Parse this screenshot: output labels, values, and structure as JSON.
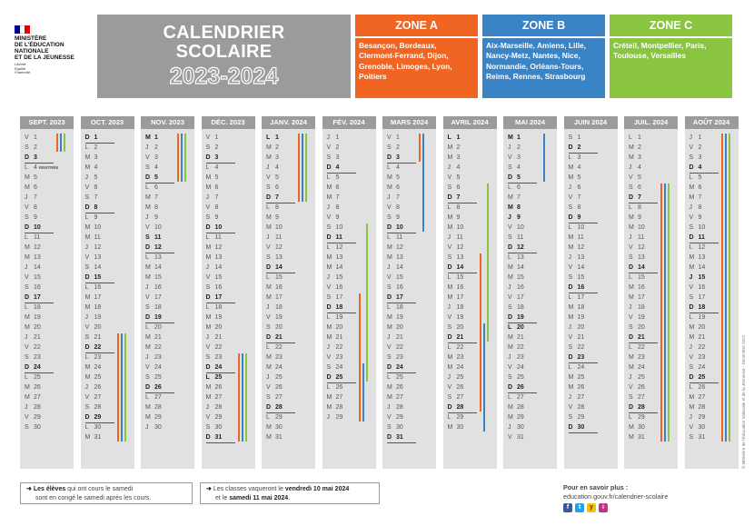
{
  "logo": {
    "lines": [
      "MINISTÈRE",
      "DE L'ÉDUCATION",
      "NATIONALE",
      "ET DE LA JEUNESSE"
    ],
    "motto": [
      "Liberté",
      "Égalité",
      "Fraternité"
    ]
  },
  "title": {
    "line1": "CALENDRIER",
    "line2": "SCOLAIRE",
    "years": "2023-2024"
  },
  "colors": {
    "zoneA": "#f06522",
    "zoneB": "#3a83c5",
    "zoneC": "#89c541",
    "grey": "#9b9b9b"
  },
  "zones": [
    {
      "name": "ZONE A",
      "cities": "Besançon, Bordeaux, Clermont-Ferrand, Dijon, Grenoble, Limoges, Lyon, Poitiers"
    },
    {
      "name": "ZONE B",
      "cities": "Aix-Marseille, Amiens, Lille, Nancy-Metz, Nantes, Nice, Normandie, Orléans-Tours, Reims, Rennes, Strasbourg"
    },
    {
      "name": "ZONE C",
      "cities": "Créteil, Montpellier, Paris, Toulouse, Versailles"
    }
  ],
  "months": [
    {
      "name": "SEPT. 2023",
      "first": 5,
      "days": 30,
      "notes": {
        "4": "RENTRÉE"
      }
    },
    {
      "name": "OCT. 2023",
      "first": 0,
      "days": 31
    },
    {
      "name": "NOV. 2023",
      "first": 3,
      "days": 30
    },
    {
      "name": "DÉC. 2023",
      "first": 5,
      "days": 31
    },
    {
      "name": "JANV. 2024",
      "first": 1,
      "days": 31
    },
    {
      "name": "FÉV. 2024",
      "first": 4,
      "days": 29
    },
    {
      "name": "MARS 2024",
      "first": 5,
      "days": 31
    },
    {
      "name": "AVRIL 2024",
      "first": 1,
      "days": 30
    },
    {
      "name": "MAI 2024",
      "first": 3,
      "days": 31
    },
    {
      "name": "JUIN 2024",
      "first": 6,
      "days": 30
    },
    {
      "name": "JUIL. 2024",
      "first": 1,
      "days": 31
    },
    {
      "name": "AOÛT 2024",
      "first": 4,
      "days": 31
    }
  ],
  "day_letters": [
    "D",
    "L",
    "M",
    "M",
    "J",
    "V",
    "S"
  ],
  "bold_days": [
    [
      3,
      10,
      17,
      24
    ],
    [
      1,
      8,
      15,
      22,
      29
    ],
    [
      1,
      5,
      11,
      12,
      19,
      26
    ],
    [
      3,
      10,
      17,
      24,
      25,
      31
    ],
    [
      1,
      7,
      14,
      21,
      28
    ],
    [
      4,
      11,
      18,
      25
    ],
    [
      3,
      10,
      17,
      24,
      31
    ],
    [
      1,
      7,
      14,
      21,
      28
    ],
    [
      1,
      5,
      8,
      9,
      12,
      19,
      20,
      26
    ],
    [
      2,
      9,
      16,
      23,
      30
    ],
    [
      7,
      14,
      21,
      28
    ],
    [
      4,
      11,
      15,
      18,
      25
    ]
  ],
  "holidays": [
    {
      "month": 0,
      "zone": "a",
      "from": 1,
      "to": 2
    },
    {
      "month": 0,
      "zone": "b",
      "from": 1,
      "to": 2
    },
    {
      "month": 0,
      "zone": "c",
      "from": 1,
      "to": 2
    },
    {
      "month": 1,
      "zone": "a",
      "from": 21,
      "to": 31
    },
    {
      "month": 1,
      "zone": "b",
      "from": 21,
      "to": 31
    },
    {
      "month": 1,
      "zone": "c",
      "from": 21,
      "to": 31
    },
    {
      "month": 2,
      "zone": "a",
      "from": 1,
      "to": 5
    },
    {
      "month": 2,
      "zone": "b",
      "from": 1,
      "to": 5
    },
    {
      "month": 2,
      "zone": "c",
      "from": 1,
      "to": 5
    },
    {
      "month": 3,
      "zone": "a",
      "from": 23,
      "to": 31
    },
    {
      "month": 3,
      "zone": "b",
      "from": 23,
      "to": 31
    },
    {
      "month": 3,
      "zone": "c",
      "from": 23,
      "to": 31
    },
    {
      "month": 4,
      "zone": "a",
      "from": 1,
      "to": 7
    },
    {
      "month": 4,
      "zone": "b",
      "from": 1,
      "to": 7
    },
    {
      "month": 4,
      "zone": "c",
      "from": 1,
      "to": 7
    },
    {
      "month": 5,
      "zone": "c",
      "from": 10,
      "to": 25
    },
    {
      "month": 5,
      "zone": "a",
      "from": 17,
      "to": 29
    },
    {
      "month": 5,
      "zone": "b",
      "from": 24,
      "to": 29
    },
    {
      "month": 6,
      "zone": "a",
      "from": 1,
      "to": 3
    },
    {
      "month": 6,
      "zone": "b",
      "from": 1,
      "to": 10
    },
    {
      "month": 7,
      "zone": "c",
      "from": 6,
      "to": 21
    },
    {
      "month": 7,
      "zone": "a",
      "from": 13,
      "to": 28
    },
    {
      "month": 7,
      "zone": "b",
      "from": 20,
      "to": 30
    },
    {
      "month": 8,
      "zone": "b",
      "from": 1,
      "to": 5
    },
    {
      "month": 9,
      "zone": "a",
      "from": 0,
      "to": 0
    },
    {
      "month": 10,
      "zone": "a",
      "from": 6,
      "to": 31
    },
    {
      "month": 10,
      "zone": "b",
      "from": 6,
      "to": 31
    },
    {
      "month": 10,
      "zone": "c",
      "from": 6,
      "to": 31
    },
    {
      "month": 11,
      "zone": "a",
      "from": 1,
      "to": 31
    },
    {
      "month": 11,
      "zone": "b",
      "from": 1,
      "to": 31
    },
    {
      "month": 11,
      "zone": "c",
      "from": 1,
      "to": 31
    }
  ],
  "footer": {
    "note1_bold": "Les élèves",
    "note1_rest": " qui ont cours le samedi",
    "note1_line2": "sont en congé le samedi après les cours.",
    "note2_start": "Les classes vaqueront le ",
    "note2_bold1": "vendredi 10 mai 2024",
    "note2_mid": "et le ",
    "note2_bold2": "samedi 11 mai 2024",
    "note2_end": ".",
    "more_title": "Pour en savoir plus :",
    "more_url": "education.gouv.fr/calendrier-scolaire",
    "socials": [
      "f",
      "t",
      "y",
      "i"
    ]
  },
  "credit": "© Ministère de l'Éducation nationale et de la Jeunesse - Décembre 2022"
}
